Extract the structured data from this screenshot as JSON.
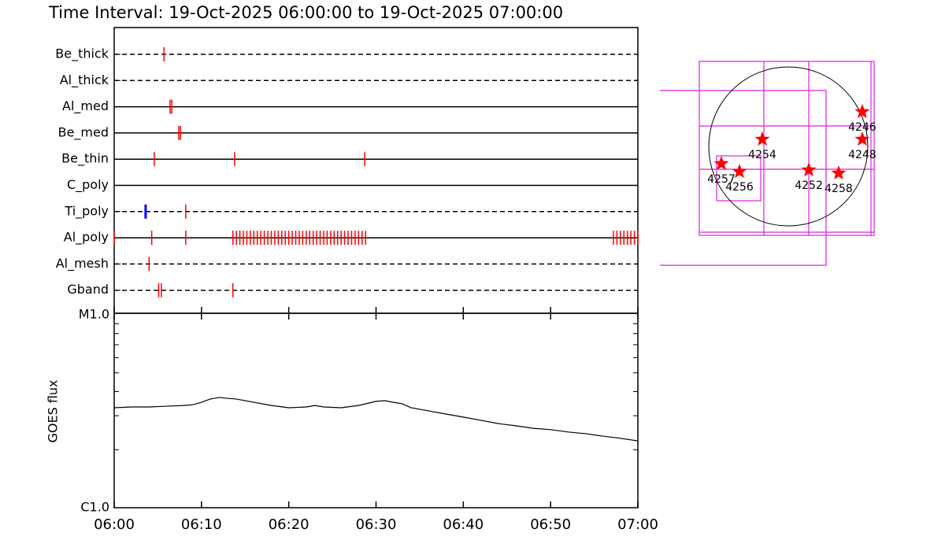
{
  "chart_data": [
    {
      "type": "timeline",
      "title": "Time Interval: 19-Oct-2025 06:00:00 to 19-Oct-2025 07:00:00",
      "xlim": [
        0,
        60
      ],
      "color": "#ff0000",
      "rows": [
        {
          "name": "Be_thick",
          "style": "dashed",
          "times": [
            5.7
          ]
        },
        {
          "name": "Al_thick",
          "style": "dashed",
          "times": []
        },
        {
          "name": "Al_med",
          "style": "solid",
          "times": [
            6.4,
            6.6
          ]
        },
        {
          "name": "Be_med",
          "style": "solid",
          "times": [
            7.4,
            7.6
          ]
        },
        {
          "name": "Be_thin",
          "style": "solid",
          "times": [
            4.6,
            13.8,
            28.7
          ]
        },
        {
          "name": "C_poly",
          "style": "solid",
          "times": []
        },
        {
          "name": "Ti_poly",
          "style": "dashed",
          "times": [
            3.6,
            8.2
          ],
          "colors": [
            "#0000ff",
            "#ff0000"
          ]
        },
        {
          "name": "Al_poly",
          "style": "solid",
          "times": [
            0.0,
            4.3,
            8.2,
            13.6,
            14.0,
            14.4,
            14.8,
            15.2,
            15.6,
            16.0,
            16.4,
            16.8,
            17.2,
            17.6,
            18.0,
            18.4,
            18.8,
            19.2,
            19.6,
            20.0,
            20.4,
            20.8,
            21.2,
            21.6,
            22.0,
            22.4,
            22.8,
            23.2,
            23.6,
            24.0,
            24.4,
            24.8,
            25.2,
            25.6,
            26.0,
            26.4,
            26.8,
            27.2,
            27.6,
            28.0,
            28.4,
            28.8,
            57.2,
            57.6,
            58.0,
            58.4,
            58.8,
            59.2,
            59.6,
            60.0
          ]
        },
        {
          "name": "Al_mesh",
          "style": "dashed",
          "times": [
            4.0
          ]
        },
        {
          "name": "Gband",
          "style": "dashed",
          "times": [
            5.1,
            5.4,
            13.6
          ]
        }
      ]
    },
    {
      "type": "line",
      "ylabel": "GOES flux",
      "color": "#000000",
      "log": true,
      "x": [
        0,
        2,
        4,
        6,
        8,
        9,
        10,
        11,
        12,
        13,
        14,
        16,
        18,
        20,
        22,
        23,
        24,
        26,
        28,
        30,
        31,
        32,
        33,
        34,
        36,
        38,
        40,
        42,
        44,
        46,
        48,
        50,
        52,
        54,
        56,
        58,
        60
      ],
      "values": [
        3.3e-06,
        3.33e-06,
        3.33e-06,
        3.36e-06,
        3.39e-06,
        3.42e-06,
        3.52e-06,
        3.66e-06,
        3.73e-06,
        3.69e-06,
        3.66e-06,
        3.52e-06,
        3.39e-06,
        3.3e-06,
        3.33e-06,
        3.39e-06,
        3.33e-06,
        3.3e-06,
        3.39e-06,
        3.56e-06,
        3.59e-06,
        3.52e-06,
        3.46e-06,
        3.3e-06,
        3.18e-06,
        3.06e-06,
        2.95e-06,
        2.84e-06,
        2.73e-06,
        2.66e-06,
        2.58e-06,
        2.54e-06,
        2.47e-06,
        2.42e-06,
        2.35e-06,
        2.29e-06,
        2.22e-06
      ],
      "xlim": [
        0,
        60
      ],
      "xticks": [
        {
          "value": 0,
          "label": "06:00"
        },
        {
          "value": 10,
          "label": "06:10"
        },
        {
          "value": 20,
          "label": "06:20"
        },
        {
          "value": 30,
          "label": "06:30"
        },
        {
          "value": 40,
          "label": "06:40"
        },
        {
          "value": 50,
          "label": "06:50"
        },
        {
          "value": 60,
          "label": "07:00"
        }
      ],
      "ylim": [
        1e-06,
        1e-05
      ],
      "yticks": [
        {
          "value": 1e-05,
          "label": "M1.0"
        },
        {
          "value": 1e-06,
          "label": "C1.0"
        }
      ],
      "yminor": [
        2e-06,
        3e-06,
        4e-06,
        5e-06,
        6e-06,
        7e-06,
        8e-06,
        9e-06
      ]
    },
    {
      "type": "map",
      "color": "#ff0000",
      "points": [
        {
          "label": "4246",
          "x": 902,
          "y": 422
        },
        {
          "label": "4248",
          "x": 902,
          "y": 86
        },
        {
          "label": "4254",
          "x": -317,
          "y": 86
        },
        {
          "label": "4257",
          "x": -816,
          "y": -211
        },
        {
          "label": "4256",
          "x": -595,
          "y": -307
        },
        {
          "label": "4252",
          "x": 250,
          "y": -288
        },
        {
          "label": "4258",
          "x": 614,
          "y": -326
        }
      ]
    }
  ]
}
